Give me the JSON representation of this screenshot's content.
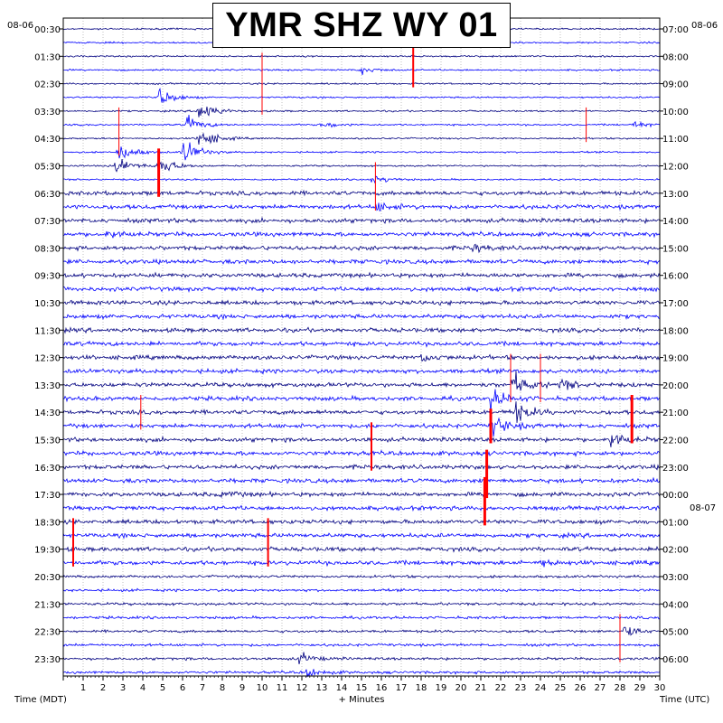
{
  "chart_data": {
    "type": "helicorder",
    "title": "YMR SHZ WY 01",
    "left_date": "08-06",
    "right_date": "08-06",
    "right_date_change": "08-07",
    "xlabel": "+ Minutes",
    "xlabel_left": "Time (MDT)",
    "xlabel_right": "Time (UTC)",
    "xlim": [
      0,
      30
    ],
    "x_ticks": [
      "1",
      "2",
      "3",
      "4",
      "5",
      "6",
      "7",
      "8",
      "9",
      "10",
      "11",
      "12",
      "13",
      "14",
      "15",
      "16",
      "17",
      "18",
      "19",
      "20",
      "21",
      "22",
      "23",
      "24",
      "25",
      "26",
      "27",
      "28",
      "29",
      "30"
    ],
    "rows_per_hour": 2,
    "row_count": 48,
    "left_labels": [
      "00:30",
      "01:30",
      "02:30",
      "03:30",
      "04:30",
      "05:30",
      "06:30",
      "07:30",
      "08:30",
      "09:30",
      "10:30",
      "11:30",
      "12:30",
      "13:30",
      "14:30",
      "15:30",
      "16:30",
      "17:30",
      "18:30",
      "19:30",
      "20:30",
      "21:30",
      "22:30",
      "23:30"
    ],
    "right_labels": [
      "07:00",
      "08:00",
      "09:00",
      "10:00",
      "11:00",
      "12:00",
      "13:00",
      "14:00",
      "15:00",
      "16:00",
      "17:00",
      "18:00",
      "19:00",
      "20:00",
      "21:00",
      "22:00",
      "23:00",
      "00:00",
      "01:00",
      "02:00",
      "03:00",
      "04:00",
      "05:00",
      "06:00"
    ],
    "trace_colors": [
      "#000080",
      "#0000ff"
    ],
    "clip_color": "#ff0000",
    "grid": true,
    "events": [
      {
        "row": 1,
        "minute": 18.0,
        "amp": 2.0
      },
      {
        "row": 3,
        "minute": 15.0,
        "amp": 0.8
      },
      {
        "row": 5,
        "minute": 4.8,
        "amp": 2.2
      },
      {
        "row": 6,
        "minute": 6.8,
        "amp": 2.8
      },
      {
        "row": 7,
        "minute": 6.2,
        "amp": 2.0
      },
      {
        "row": 7,
        "minute": 13.0,
        "amp": 0.9
      },
      {
        "row": 7,
        "minute": 28.5,
        "amp": 1.0
      },
      {
        "row": 8,
        "minute": 6.8,
        "amp": 3.0
      },
      {
        "row": 9,
        "minute": 2.8,
        "amp": 2.2
      },
      {
        "row": 9,
        "minute": 6.0,
        "amp": 3.2
      },
      {
        "row": 10,
        "minute": 2.6,
        "amp": 2.6
      },
      {
        "row": 10,
        "minute": 4.8,
        "amp": 2.8
      },
      {
        "row": 11,
        "minute": 15.5,
        "amp": 1.2
      },
      {
        "row": 13,
        "minute": 15.8,
        "amp": 1.0
      },
      {
        "row": 15,
        "minute": 2.2,
        "amp": 0.9
      },
      {
        "row": 16,
        "minute": 20.5,
        "amp": 0.8
      },
      {
        "row": 24,
        "minute": 18.0,
        "amp": 1.0
      },
      {
        "row": 26,
        "minute": 22.6,
        "amp": 2.8
      },
      {
        "row": 26,
        "minute": 25.0,
        "amp": 1.2
      },
      {
        "row": 27,
        "minute": 21.5,
        "amp": 2.2
      },
      {
        "row": 28,
        "minute": 22.6,
        "amp": 3.0
      },
      {
        "row": 29,
        "minute": 21.6,
        "amp": 2.4
      },
      {
        "row": 30,
        "minute": 27.5,
        "amp": 1.8
      },
      {
        "row": 34,
        "minute": 8.0,
        "amp": 0.6
      },
      {
        "row": 39,
        "minute": 24.0,
        "amp": 0.7
      },
      {
        "row": 44,
        "minute": 28.2,
        "amp": 1.4
      },
      {
        "row": 46,
        "minute": 11.8,
        "amp": 1.4
      },
      {
        "row": 47,
        "minute": 12.2,
        "amp": 1.2
      }
    ],
    "clips": [
      {
        "row": 1,
        "minute": 17.6,
        "rows_span": 3,
        "width": 2
      },
      {
        "row": 2,
        "minute": 10.0,
        "rows_span": 4,
        "width": 1
      },
      {
        "row": 6,
        "minute": 2.8,
        "rows_span": 3,
        "width": 1
      },
      {
        "row": 6,
        "minute": 26.3,
        "rows_span": 2,
        "width": 1
      },
      {
        "row": 9,
        "minute": 4.8,
        "rows_span": 3,
        "width": 3
      },
      {
        "row": 10,
        "minute": 15.7,
        "rows_span": 3,
        "width": 1
      },
      {
        "row": 24,
        "minute": 22.5,
        "rows_span": 3,
        "width": 1
      },
      {
        "row": 24,
        "minute": 24.0,
        "rows_span": 3,
        "width": 1
      },
      {
        "row": 27,
        "minute": 3.9,
        "rows_span": 2,
        "width": 1
      },
      {
        "row": 27,
        "minute": 28.6,
        "rows_span": 3,
        "width": 3
      },
      {
        "row": 28,
        "minute": 21.5,
        "rows_span": 2,
        "width": 3
      },
      {
        "row": 29,
        "minute": 15.5,
        "rows_span": 3,
        "width": 2
      },
      {
        "row": 31,
        "minute": 21.3,
        "rows_span": 3,
        "width": 3
      },
      {
        "row": 33,
        "minute": 21.2,
        "rows_span": 3,
        "width": 3
      },
      {
        "row": 36,
        "minute": 0.5,
        "rows_span": 3,
        "width": 2
      },
      {
        "row": 36,
        "minute": 10.3,
        "rows_span": 3,
        "width": 2
      },
      {
        "row": 43,
        "minute": 28.0,
        "rows_span": 3,
        "width": 1
      }
    ]
  }
}
